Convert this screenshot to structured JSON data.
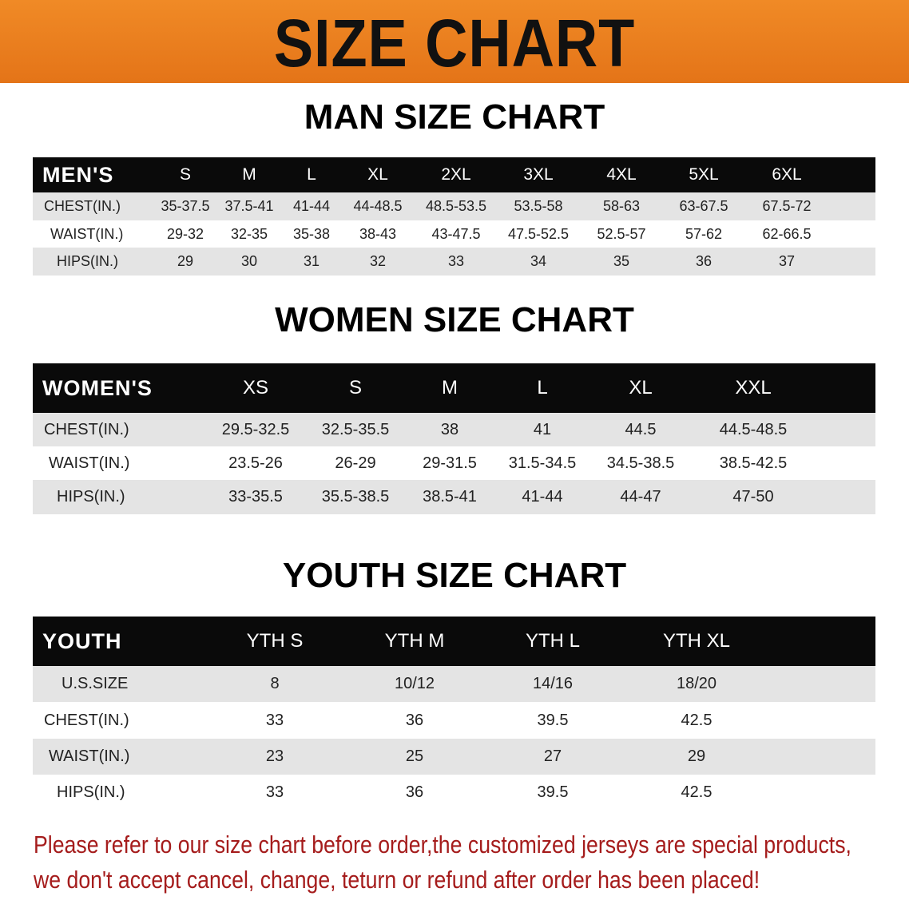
{
  "banner": {
    "title": "SIZE CHART",
    "color": "#e87d1e"
  },
  "men": {
    "title": "MAN SIZE CHART",
    "header": [
      "MEN'S",
      "S",
      "M",
      "L",
      "XL",
      "2XL",
      "3XL",
      "4XL",
      "5XL",
      "6XL"
    ],
    "rows": [
      [
        "CHEST(IN.)",
        "35-37.5",
        "37.5-41",
        "41-44",
        "44-48.5",
        "48.5-53.5",
        "53.5-58",
        "58-63",
        "63-67.5",
        "67.5-72"
      ],
      [
        "WAIST(IN.)",
        "29-32",
        "32-35",
        "35-38",
        "38-43",
        "43-47.5",
        "47.5-52.5",
        "52.5-57",
        "57-62",
        "62-66.5"
      ],
      [
        "HIPS(IN.)",
        "29",
        "30",
        "31",
        "32",
        "33",
        "34",
        "35",
        "36",
        "37"
      ]
    ]
  },
  "women": {
    "title": "WOMEN SIZE CHART",
    "header": [
      "WOMEN'S",
      "XS",
      "S",
      "M",
      "L",
      "XL",
      "XXL"
    ],
    "rows": [
      [
        "CHEST(IN.)",
        "29.5-32.5",
        "32.5-35.5",
        "38",
        "41",
        "44.5",
        "44.5-48.5"
      ],
      [
        "WAIST(IN.)",
        "23.5-26",
        "26-29",
        "29-31.5",
        "31.5-34.5",
        "34.5-38.5",
        "38.5-42.5"
      ],
      [
        "HIPS(IN.)",
        "33-35.5",
        "35.5-38.5",
        "38.5-41",
        "41-44",
        "44-47",
        "47-50"
      ]
    ]
  },
  "youth": {
    "title": "YOUTH SIZE CHART",
    "header": [
      "YOUTH",
      "YTH S",
      "YTH M",
      "YTH L",
      "YTH XL"
    ],
    "rows": [
      [
        "U.S.SIZE",
        "8",
        "10/12",
        "14/16",
        "18/20"
      ],
      [
        "CHEST(IN.)",
        "33",
        "36",
        "39.5",
        "42.5"
      ],
      [
        "WAIST(IN.)",
        "23",
        "25",
        "27",
        "29"
      ],
      [
        "HIPS(IN.)",
        "33",
        "36",
        "39.5",
        "42.5"
      ]
    ]
  },
  "footer": {
    "line1": "Please refer to our size chart before order,the customized jerseys are special products,",
    "line2": "we don't accept cancel, change, teturn or refund after order has been placed!",
    "color": "#a51c1c"
  }
}
